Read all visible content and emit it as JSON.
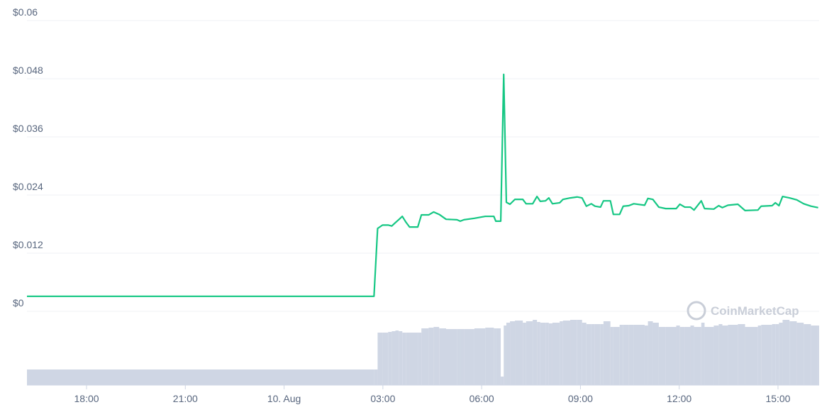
{
  "chart_data": {
    "type": "line",
    "xlim": [
      16.19,
      40.25
    ],
    "ylim": [
      0,
      0.06
    ],
    "yticks": [
      {
        "value": 0,
        "label": "$0"
      },
      {
        "value": 0.012,
        "label": "$0.012"
      },
      {
        "value": 0.024,
        "label": "$0.024"
      },
      {
        "value": 0.036,
        "label": "$0.036"
      },
      {
        "value": 0.048,
        "label": "$0.048"
      },
      {
        "value": 0.06,
        "label": "$0.06"
      }
    ],
    "xticks": [
      {
        "value": 18,
        "label": "18:00"
      },
      {
        "value": 21,
        "label": "21:00"
      },
      {
        "value": 24,
        "label": "10. Aug"
      },
      {
        "value": 27,
        "label": "03:00"
      },
      {
        "value": 30,
        "label": "06:00"
      },
      {
        "value": 33,
        "label": "09:00"
      },
      {
        "value": 36,
        "label": "12:00"
      },
      {
        "value": 39,
        "label": "15:00"
      }
    ],
    "grid": true,
    "watermark": "CoinMarketCap",
    "x": [
      16.19,
      26.73,
      26.84,
      26.99,
      27.16,
      27.27,
      27.38,
      27.48,
      27.59,
      27.7,
      27.81,
      28.06,
      28.17,
      28.39,
      28.54,
      28.71,
      28.92,
      29.25,
      29.35,
      29.46,
      29.78,
      30.11,
      30.37,
      30.43,
      30.58,
      30.67,
      30.75,
      30.86,
      31.01,
      31.25,
      31.35,
      31.55,
      31.68,
      31.78,
      31.94,
      32.04,
      32.15,
      32.37,
      32.47,
      32.69,
      32.9,
      33.05,
      33.18,
      33.33,
      33.44,
      33.61,
      33.7,
      33.91,
      34.0,
      34.19,
      34.3,
      34.47,
      34.62,
      34.95,
      35.05,
      35.2,
      35.38,
      35.59,
      35.91,
      36.02,
      36.17,
      36.34,
      36.45,
      36.67,
      36.77,
      37.05,
      37.2,
      37.31,
      37.48,
      37.78,
      38.0,
      38.39,
      38.49,
      38.82,
      38.92,
      39.03,
      39.14,
      39.35,
      39.57,
      39.78,
      40.0,
      40.22
    ],
    "series": [
      {
        "color": "#16c784",
        "values": [
          0.0031,
          0.0031,
          0.0171,
          0.0178,
          0.0178,
          0.0176,
          0.0183,
          0.0189,
          0.0196,
          0.0184,
          0.0174,
          0.0174,
          0.0199,
          0.0199,
          0.0205,
          0.02,
          0.019,
          0.0189,
          0.0186,
          0.0189,
          0.0192,
          0.0196,
          0.0196,
          0.0186,
          0.0186,
          0.0489,
          0.0225,
          0.0221,
          0.0231,
          0.0231,
          0.0222,
          0.0222,
          0.0237,
          0.0227,
          0.0228,
          0.0234,
          0.0222,
          0.0224,
          0.0231,
          0.0234,
          0.0236,
          0.0234,
          0.0217,
          0.0222,
          0.0217,
          0.0215,
          0.0228,
          0.0228,
          0.02,
          0.02,
          0.0217,
          0.0218,
          0.0222,
          0.0219,
          0.0233,
          0.0231,
          0.0215,
          0.0212,
          0.0212,
          0.0221,
          0.0215,
          0.0215,
          0.0209,
          0.0228,
          0.0212,
          0.0211,
          0.0218,
          0.0214,
          0.0219,
          0.0221,
          0.0208,
          0.0209,
          0.0217,
          0.0218,
          0.0224,
          0.0218,
          0.0237,
          0.0234,
          0.023,
          0.0222,
          0.0217,
          0.0214
        ]
      }
    ],
    "volume": {
      "color": "#cfd6e4",
      "values": [
        22,
        22,
        74,
        74,
        75,
        76,
        77,
        76,
        74,
        74,
        74,
        74,
        80,
        81,
        82,
        80,
        79,
        79,
        79,
        79,
        80,
        81,
        80,
        80,
        12,
        84,
        88,
        90,
        91,
        88,
        90,
        92,
        89,
        88,
        88,
        87,
        88,
        90,
        91,
        92,
        92,
        88,
        86,
        86,
        86,
        86,
        90,
        82,
        82,
        85,
        85,
        85,
        85,
        84,
        90,
        88,
        82,
        82,
        84,
        82,
        82,
        84,
        82,
        88,
        82,
        84,
        86,
        84,
        85,
        86,
        82,
        84,
        85,
        86,
        86,
        88,
        92,
        90,
        88,
        86,
        84,
        84
      ]
    }
  }
}
